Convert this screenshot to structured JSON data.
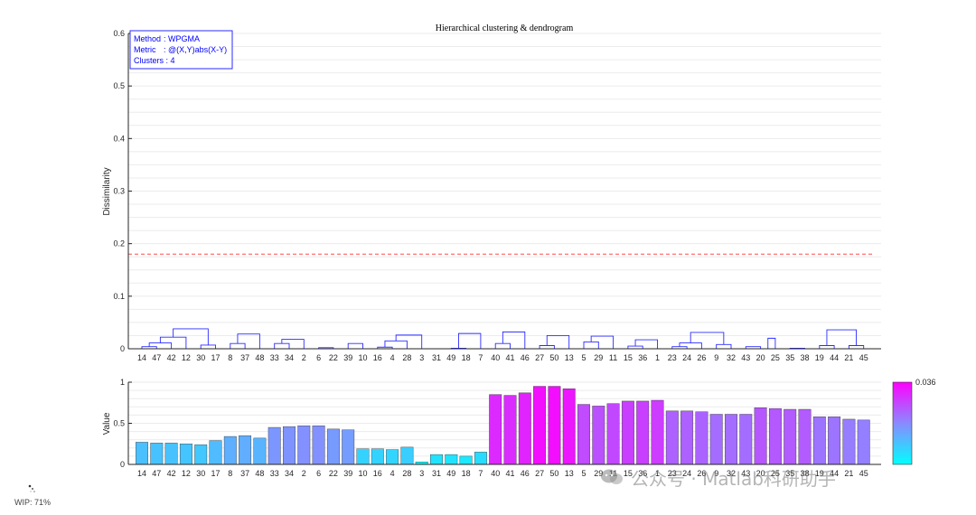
{
  "chart_data": [
    {
      "type": "dendrogram",
      "title": "Hierarchical clustering & dendrogram",
      "ylabel": "Dissimilarity",
      "ylim": [
        0,
        0.6
      ],
      "yticks": [
        0,
        0.1,
        0.2,
        0.3,
        0.4,
        0.5,
        0.6
      ],
      "ytick_labels": [
        "0",
        "0.1",
        "0.2",
        "0.3",
        "0.4",
        "0.5",
        "0.6"
      ],
      "grid": true,
      "cutoff": 0.18,
      "cutoff_color": "#ff4d4d",
      "link_color": "#2b2bff",
      "leaf_order": [
        "14",
        "47",
        "42",
        "12",
        "30",
        "17",
        "8",
        "37",
        "48",
        "33",
        "34",
        "2",
        "6",
        "22",
        "39",
        "10",
        "16",
        "4",
        "28",
        "3",
        "31",
        "49",
        "18",
        "7",
        "40",
        "41",
        "46",
        "27",
        "50",
        "13",
        "5",
        "29",
        "11",
        "15",
        "36",
        "1",
        "23",
        "24",
        "26",
        "9",
        "32",
        "43",
        "20",
        "25",
        "35",
        "38",
        "19",
        "44",
        "21",
        "45"
      ],
      "links": [
        {
          "a": 0,
          "b": 1,
          "h": 0.004
        },
        {
          "a": 0.5,
          "b": 2,
          "h": 0.011
        },
        {
          "a": 1.25,
          "b": 3,
          "h": 0.022
        },
        {
          "a": 4,
          "b": 5,
          "h": 0.007
        },
        {
          "a": 2.125,
          "b": 4.5,
          "h": 0.038
        },
        {
          "a": 6,
          "b": 7,
          "h": 0.01
        },
        {
          "a": 6.5,
          "b": 8,
          "h": 0.028
        },
        {
          "a": 9,
          "b": 10,
          "h": 0.01
        },
        {
          "a": 9.5,
          "b": 11,
          "h": 0.018
        },
        {
          "a": 12,
          "b": 13,
          "h": 0.002
        },
        {
          "a": 14,
          "b": 15,
          "h": 0.01
        },
        {
          "a": 16,
          "b": 17,
          "h": 0.003
        },
        {
          "a": 16.5,
          "b": 18,
          "h": 0.015
        },
        {
          "a": 17.25,
          "b": 19,
          "h": 0.026
        },
        {
          "a": 21,
          "b": 22,
          "h": 0.001
        },
        {
          "a": 21.5,
          "b": 23,
          "h": 0.029
        },
        {
          "a": 24,
          "b": 25,
          "h": 0.01
        },
        {
          "a": 24.5,
          "b": 26,
          "h": 0.032
        },
        {
          "a": 27,
          "b": 28,
          "h": 0.006
        },
        {
          "a": 27.5,
          "b": 29,
          "h": 0.025
        },
        {
          "a": 30,
          "b": 31,
          "h": 0.013
        },
        {
          "a": 30.5,
          "b": 32,
          "h": 0.024
        },
        {
          "a": 33,
          "b": 34,
          "h": 0.005
        },
        {
          "a": 33.5,
          "b": 35,
          "h": 0.017
        },
        {
          "a": 36,
          "b": 37,
          "h": 0.004
        },
        {
          "a": 36.5,
          "b": 38,
          "h": 0.011
        },
        {
          "a": 39,
          "b": 40,
          "h": 0.008
        },
        {
          "a": 37.25,
          "b": 39.5,
          "h": 0.031
        },
        {
          "a": 41,
          "b": 42,
          "h": 0.004
        },
        {
          "a": 42.5,
          "b": 43,
          "h": 0.02
        },
        {
          "a": 44,
          "b": 45,
          "h": 0.001
        },
        {
          "a": 46,
          "b": 47,
          "h": 0.006
        },
        {
          "a": 48,
          "b": 49,
          "h": 0.006
        },
        {
          "a": 46.5,
          "b": 48.5,
          "h": 0.036
        }
      ],
      "info_box": {
        "method_label": "Method",
        "method_value": ": WPGMA",
        "metric_label": "Metric",
        "metric_value": ": @(X,Y)abs(X-Y)",
        "clusters_text": "Clusters : 4"
      }
    },
    {
      "type": "bar",
      "ylabel": "Value",
      "ylim": [
        0,
        1
      ],
      "yticks": [
        0,
        0.5,
        1
      ],
      "ytick_labels": [
        "0",
        "0.5",
        "1"
      ],
      "grid": true,
      "categories": [
        "14",
        "47",
        "42",
        "12",
        "30",
        "17",
        "8",
        "37",
        "48",
        "33",
        "34",
        "2",
        "6",
        "22",
        "39",
        "10",
        "16",
        "4",
        "28",
        "3",
        "31",
        "49",
        "18",
        "7",
        "40",
        "41",
        "46",
        "27",
        "50",
        "13",
        "5",
        "29",
        "11",
        "15",
        "36",
        "1",
        "23",
        "24",
        "26",
        "9",
        "32",
        "43",
        "20",
        "25",
        "35",
        "38",
        "19",
        "44",
        "21",
        "45"
      ],
      "values": [
        0.27,
        0.26,
        0.26,
        0.25,
        0.24,
        0.29,
        0.34,
        0.35,
        0.32,
        0.45,
        0.46,
        0.47,
        0.47,
        0.43,
        0.42,
        0.19,
        0.19,
        0.18,
        0.21,
        0.03,
        0.12,
        0.12,
        0.1,
        0.15,
        0.85,
        0.84,
        0.87,
        0.95,
        0.95,
        0.92,
        0.73,
        0.71,
        0.74,
        0.77,
        0.77,
        0.78,
        0.65,
        0.65,
        0.64,
        0.61,
        0.61,
        0.61,
        0.69,
        0.68,
        0.67,
        0.67,
        0.58,
        0.58,
        0.55,
        0.54
      ],
      "colorbar": {
        "label": "0.036",
        "colors": [
          "#ff00ff",
          "#8a8aff",
          "#00ffff"
        ]
      }
    }
  ],
  "status": {
    "wip_text": "WIP: 71%"
  },
  "watermark": {
    "text": "公众号 · Matlab科研助手"
  }
}
